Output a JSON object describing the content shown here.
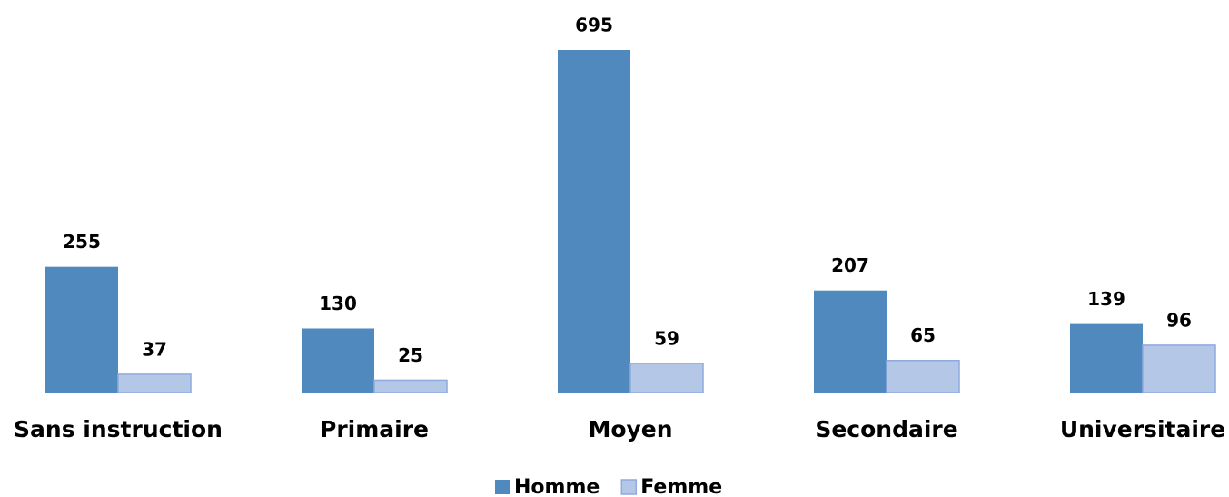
{
  "chart_data": {
    "type": "bar",
    "categories": [
      "Sans instruction",
      "Primaire",
      "Moyen",
      "Secondaire",
      "Universitaire"
    ],
    "series": [
      {
        "name": "Homme",
        "color": "#4f89bd",
        "values": [
          255,
          130,
          695,
          207,
          139
        ]
      },
      {
        "name": "Femme",
        "color": "#b4c7e7",
        "values": [
          37,
          25,
          59,
          65,
          96
        ]
      }
    ],
    "legend": "bottom"
  }
}
